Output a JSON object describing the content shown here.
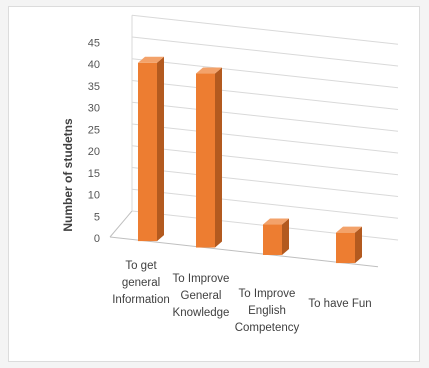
{
  "chart_data": {
    "type": "bar",
    "title": "",
    "xlabel": "",
    "ylabel": "Number of studetns",
    "ylim": [
      0,
      45
    ],
    "yticks": [
      0,
      5,
      10,
      15,
      20,
      25,
      30,
      35,
      40,
      45
    ],
    "grid": true,
    "categories": [
      [
        "To get",
        "general",
        "Information"
      ],
      [
        "To Improve",
        "General",
        "Knowledge"
      ],
      [
        "To Improve",
        "English",
        "Competency"
      ],
      [
        "To have Fun"
      ]
    ],
    "values": [
      41,
      40,
      7,
      7
    ],
    "colors": {
      "front": "#ED7D31",
      "side": "#B35A1F",
      "top": "#F3A26A",
      "grid": "#d9d9d9",
      "axis": "#bfbfbf"
    }
  }
}
